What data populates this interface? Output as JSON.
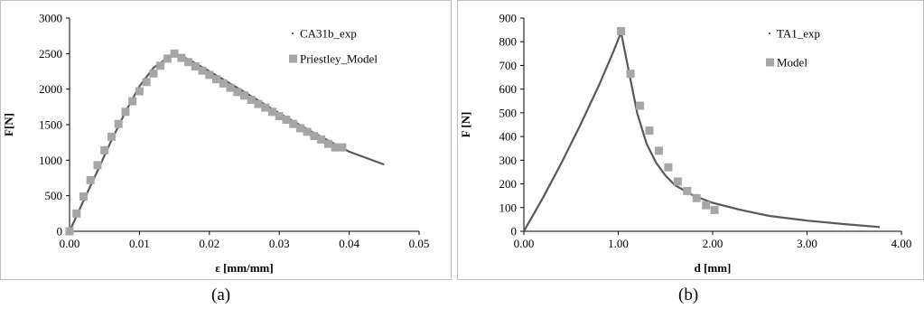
{
  "chart_data": [
    {
      "type": "scatter",
      "caption": "(a)",
      "xlabel": "ε [mm/mm]",
      "ylabel": "F[N]",
      "xlim": [
        0,
        0.05
      ],
      "ylim": [
        0,
        3000
      ],
      "xticks": [
        "0.00",
        "0.01",
        "0.02",
        "0.03",
        "0.04",
        "0.05"
      ],
      "xtick_values": [
        0,
        0.01,
        0.02,
        0.03,
        0.04,
        0.05
      ],
      "yticks": [
        "0",
        "500",
        "1000",
        "1500",
        "2000",
        "2500",
        "3000"
      ],
      "ytick_values": [
        0,
        500,
        1000,
        1500,
        2000,
        2500,
        3000
      ],
      "legend_position": "top-right",
      "series": [
        {
          "name": "CA31b_exp",
          "kind": "line",
          "color": "#595959",
          "x": [
            0,
            0.002,
            0.004,
            0.006,
            0.008,
            0.01,
            0.012,
            0.014,
            0.0155,
            0.017,
            0.02,
            0.025,
            0.03,
            0.035,
            0.04,
            0.045
          ],
          "y": [
            0,
            430,
            850,
            1280,
            1680,
            2040,
            2300,
            2440,
            2480,
            2420,
            2250,
            1960,
            1660,
            1380,
            1120,
            940
          ]
        },
        {
          "name": "Priestley_Model",
          "kind": "markers",
          "color": "#a6a6a6",
          "x": [
            0,
            0.001,
            0.002,
            0.003,
            0.004,
            0.005,
            0.006,
            0.007,
            0.008,
            0.009,
            0.01,
            0.011,
            0.012,
            0.013,
            0.014,
            0.015,
            0.016,
            0.017,
            0.018,
            0.019,
            0.02,
            0.021,
            0.022,
            0.023,
            0.024,
            0.025,
            0.026,
            0.027,
            0.028,
            0.029,
            0.03,
            0.031,
            0.032,
            0.033,
            0.034,
            0.035,
            0.036,
            0.037,
            0.038,
            0.039
          ],
          "y": [
            0,
            250,
            490,
            720,
            930,
            1140,
            1330,
            1510,
            1680,
            1830,
            1970,
            2100,
            2220,
            2330,
            2430,
            2500,
            2440,
            2380,
            2320,
            2260,
            2200,
            2140,
            2080,
            2020,
            1960,
            1910,
            1850,
            1790,
            1740,
            1680,
            1620,
            1570,
            1510,
            1450,
            1400,
            1340,
            1290,
            1230,
            1180,
            1180
          ]
        }
      ]
    },
    {
      "type": "scatter",
      "caption": "(b)",
      "xlabel": "d [mm]",
      "ylabel": "F [N]",
      "xlim": [
        0,
        4
      ],
      "ylim": [
        0,
        900
      ],
      "xticks": [
        "0.00",
        "1.00",
        "2.00",
        "3.00",
        "4.00"
      ],
      "xtick_values": [
        0,
        1,
        2,
        3,
        4
      ],
      "yticks": [
        "0",
        "100",
        "200",
        "300",
        "400",
        "500",
        "600",
        "700",
        "800",
        "900"
      ],
      "ytick_values": [
        0,
        100,
        200,
        300,
        400,
        500,
        600,
        700,
        800,
        900
      ],
      "legend_position": "top-right",
      "series": [
        {
          "name": "TA1_exp",
          "kind": "line",
          "color": "#595959",
          "x": [
            0,
            0.2,
            0.4,
            0.6,
            0.8,
            0.95,
            1.03,
            1.1,
            1.2,
            1.3,
            1.4,
            1.5,
            1.6,
            1.8,
            2.0,
            2.3,
            2.6,
            3.0,
            3.4,
            3.77
          ],
          "y": [
            0,
            140,
            290,
            450,
            620,
            760,
            840,
            700,
            500,
            370,
            290,
            235,
            195,
            150,
            120,
            90,
            65,
            45,
            30,
            18
          ]
        },
        {
          "name": "Model",
          "kind": "markers",
          "color": "#a6a6a6",
          "x": [
            1.03,
            1.13,
            1.23,
            1.33,
            1.43,
            1.53,
            1.63,
            1.73,
            1.83,
            1.93,
            2.02
          ],
          "y": [
            845,
            665,
            530,
            425,
            340,
            270,
            210,
            170,
            140,
            110,
            90
          ]
        }
      ]
    }
  ]
}
